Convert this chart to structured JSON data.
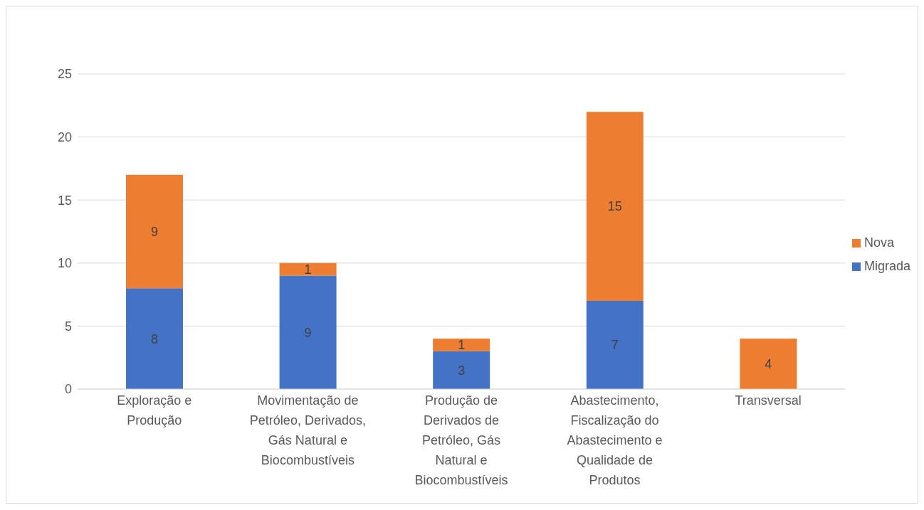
{
  "chart_data": {
    "type": "bar",
    "stacked": true,
    "categories": [
      "Exploração e Produção",
      "Movimentação de Petróleo, Derivados, Gás Natural e Biocombustíveis",
      "Produção de Derivados de Petróleo, Gás Natural e Biocombustíveis",
      "Abastecimento, Fiscalização do Abastecimento e Qualidade de Produtos",
      "Transversal"
    ],
    "series": [
      {
        "name": "Migrada",
        "color": "#4472c4",
        "values": [
          8,
          9,
          3,
          7,
          null
        ]
      },
      {
        "name": "Nova",
        "color": "#ed7d31",
        "values": [
          9,
          1,
          1,
          15,
          4
        ]
      }
    ],
    "ylim": [
      0,
      25
    ],
    "yticks": [
      0,
      5,
      10,
      15,
      20,
      25
    ],
    "grid": "y",
    "legend": "right",
    "data_labels": true
  }
}
